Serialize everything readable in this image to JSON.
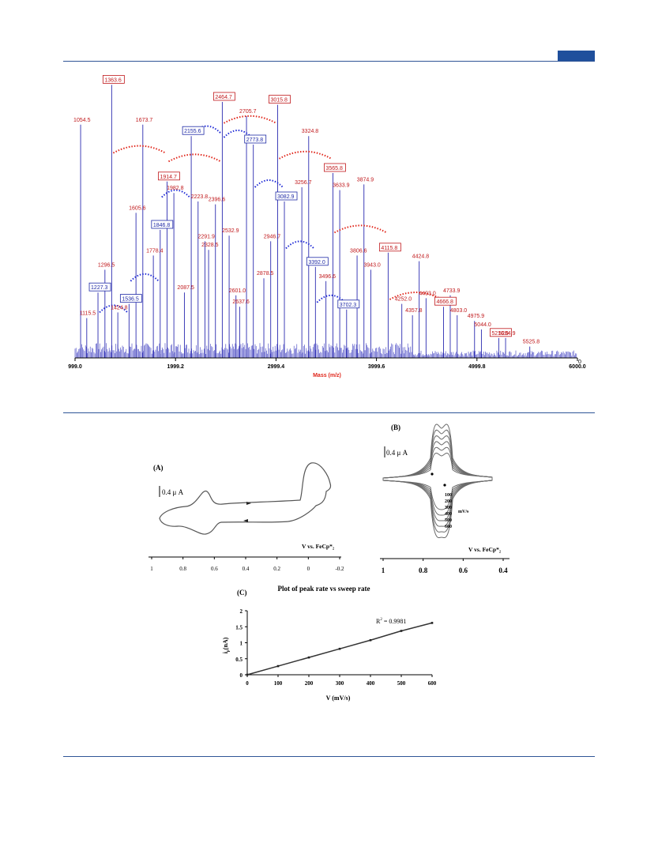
{
  "colors": {
    "rule": "#2f5597",
    "spectrum": "#2b2bb0",
    "red_label": "#c0181b",
    "blue_label": "#1f2aa6",
    "axis_title": "#e0261b"
  },
  "chart_data": [
    {
      "type": "spectrum",
      "xlabel": "Mass (m/z)",
      "xlim": [
        999.0,
        6000.0
      ],
      "x_ticks": [
        "999.0",
        "1999.2",
        "2999.4",
        "3999.6",
        "4999.8",
        "6000.0"
      ],
      "y_tick": "0",
      "ylim": [
        0,
        100
      ],
      "peaks": [
        {
          "mass": 1054.5,
          "label": "1054.5",
          "intensity": 82,
          "style": "plain"
        },
        {
          "mass": 1115.5,
          "label": "1115.5",
          "intensity": 14,
          "style": "plain"
        },
        {
          "mass": 1227.3,
          "label": "1227.3",
          "intensity": 23,
          "style": "blue-box"
        },
        {
          "mass": 1296.5,
          "label": "1296.5",
          "intensity": 31,
          "style": "plain"
        },
        {
          "mass": 1363.6,
          "label": "1363.6",
          "intensity": 96,
          "style": "red-box"
        },
        {
          "mass": 1424.8,
          "label": "1424.8",
          "intensity": 16,
          "style": "plain"
        },
        {
          "mass": 1536.5,
          "label": "1536.5",
          "intensity": 19,
          "style": "blue-box"
        },
        {
          "mass": 1605.6,
          "label": "1605.6",
          "intensity": 51,
          "style": "plain"
        },
        {
          "mass": 1673.7,
          "label": "1673.7",
          "intensity": 82,
          "style": "plain"
        },
        {
          "mass": 1778.4,
          "label": "1778.4",
          "intensity": 36,
          "style": "plain"
        },
        {
          "mass": 1846.8,
          "label": "1846.8",
          "intensity": 45,
          "style": "blue-box"
        },
        {
          "mass": 1914.7,
          "label": "1914.7",
          "intensity": 62,
          "style": "red-box"
        },
        {
          "mass": 1982.8,
          "label": "1982.8",
          "intensity": 58,
          "style": "plain"
        },
        {
          "mass": 2087.5,
          "label": "2087.5",
          "intensity": 23,
          "style": "plain"
        },
        {
          "mass": 2155.6,
          "label": "2155.6",
          "intensity": 78,
          "style": "blue-box"
        },
        {
          "mass": 2223.8,
          "label": "2223.8",
          "intensity": 55,
          "style": "plain"
        },
        {
          "mass": 2291.9,
          "label": "2291.9",
          "intensity": 41,
          "style": "plain"
        },
        {
          "mass": 2328.5,
          "label": "2328.5",
          "intensity": 38,
          "style": "plain"
        },
        {
          "mass": 2396.6,
          "label": "2396.6",
          "intensity": 54,
          "style": "plain"
        },
        {
          "mass": 2464.7,
          "label": "2464.7",
          "intensity": 90,
          "style": "red-box"
        },
        {
          "mass": 2532.9,
          "label": "2532.9",
          "intensity": 43,
          "style": "plain"
        },
        {
          "mass": 2601.0,
          "label": "2601.0",
          "intensity": 22,
          "style": "plain"
        },
        {
          "mass": 2637.6,
          "label": "2637.6",
          "intensity": 18,
          "style": "plain"
        },
        {
          "mass": 2705.7,
          "label": "2705.7",
          "intensity": 85,
          "style": "plain"
        },
        {
          "mass": 2773.8,
          "label": "2773.8",
          "intensity": 75,
          "style": "blue-box"
        },
        {
          "mass": 2878.5,
          "label": "2878.5",
          "intensity": 28,
          "style": "plain"
        },
        {
          "mass": 2946.7,
          "label": "2946.7",
          "intensity": 41,
          "style": "plain"
        },
        {
          "mass": 3015.8,
          "label": "3015.8",
          "intensity": 89,
          "style": "red-box"
        },
        {
          "mass": 3082.9,
          "label": "3082.9",
          "intensity": 55,
          "style": "blue-box"
        },
        {
          "mass": 3256.7,
          "label": "3256.7",
          "intensity": 60,
          "style": "plain"
        },
        {
          "mass": 3324.8,
          "label": "3324.8",
          "intensity": 78,
          "style": "plain"
        },
        {
          "mass": 3392.0,
          "label": "3392.0",
          "intensity": 32,
          "style": "blue-box"
        },
        {
          "mass": 3496.6,
          "label": "3496.6",
          "intensity": 27,
          "style": "plain"
        },
        {
          "mass": 3565.8,
          "label": "3565.8",
          "intensity": 65,
          "style": "red-box"
        },
        {
          "mass": 3633.9,
          "label": "3633.9",
          "intensity": 59,
          "style": "plain"
        },
        {
          "mass": 3702.3,
          "label": "3702.3",
          "intensity": 17,
          "style": "blue-box"
        },
        {
          "mass": 3806.6,
          "label": "3806.6",
          "intensity": 36,
          "style": "plain"
        },
        {
          "mass": 3874.9,
          "label": "3874.9",
          "intensity": 61,
          "style": "plain"
        },
        {
          "mass": 3943.0,
          "label": "3943.0",
          "intensity": 31,
          "style": "plain"
        },
        {
          "mass": 4115.8,
          "label": "4115.8",
          "intensity": 37,
          "style": "red-box"
        },
        {
          "mass": 4252.0,
          "label": "4252.0",
          "intensity": 19,
          "style": "plain"
        },
        {
          "mass": 4357.8,
          "label": "4357.8",
          "intensity": 15,
          "style": "plain"
        },
        {
          "mass": 4424.8,
          "label": "4424.8",
          "intensity": 34,
          "style": "plain"
        },
        {
          "mass": 4493.0,
          "label": "4493.0",
          "intensity": 21,
          "style": "plain"
        },
        {
          "mass": 4666.8,
          "label": "4666.8",
          "intensity": 18,
          "style": "red-box"
        },
        {
          "mass": 4733.9,
          "label": "4733.9",
          "intensity": 22,
          "style": "plain"
        },
        {
          "mass": 4803.0,
          "label": "4803.0",
          "intensity": 15,
          "style": "plain"
        },
        {
          "mass": 4975.9,
          "label": "4975.9",
          "intensity": 13,
          "style": "plain"
        },
        {
          "mass": 5044.0,
          "label": "5044.0",
          "intensity": 10,
          "style": "plain"
        },
        {
          "mass": 5216.9,
          "label": "5216.9",
          "intensity": 7,
          "style": "red-box"
        },
        {
          "mass": 5284.9,
          "label": "5284.9",
          "intensity": 7,
          "style": "plain"
        },
        {
          "mass": 5525.8,
          "label": "5525.8",
          "intensity": 4,
          "style": "plain"
        }
      ],
      "series_arcs": [
        {
          "color": "red",
          "from": 1363.6,
          "to": 1914.7
        },
        {
          "color": "red",
          "from": 1914.7,
          "to": 2464.7
        },
        {
          "color": "red",
          "from": 2464.7,
          "to": 3015.8
        },
        {
          "color": "red",
          "from": 3015.8,
          "to": 3565.8
        },
        {
          "color": "red",
          "from": 3565.8,
          "to": 4115.8
        },
        {
          "color": "red",
          "from": 4115.8,
          "to": 4666.8
        },
        {
          "color": "blue",
          "from": 1227.3,
          "to": 1536.5
        },
        {
          "color": "blue",
          "from": 1536.5,
          "to": 1846.8
        },
        {
          "color": "blue",
          "from": 1846.8,
          "to": 2155.6
        },
        {
          "color": "blue",
          "from": 2155.6,
          "to": 2464.7
        },
        {
          "color": "blue",
          "from": 2464.7,
          "to": 2773.8
        },
        {
          "color": "blue",
          "from": 2773.8,
          "to": 3082.9
        },
        {
          "color": "blue",
          "from": 3082.9,
          "to": 3392.0
        },
        {
          "color": "blue",
          "from": 3392.0,
          "to": 3702.3
        }
      ]
    },
    {
      "type": "line",
      "panel": "(A)",
      "scale_bar": "0.4 μ A",
      "xlabel": "V vs. FeCp*₂",
      "x_ticks": [
        "1",
        "0.8",
        "0.6",
        "0.4",
        "0.2",
        "0",
        "-0.2"
      ]
    },
    {
      "type": "line",
      "panel": "(B)",
      "scale_bar": "0.4 μ A",
      "xlabel": "V vs. FeCp*₂",
      "x_ticks": [
        "1",
        "0.8",
        "0.6",
        "0.4"
      ],
      "legend_title": "mV/s",
      "sweep_rates": [
        "100",
        "200",
        "300",
        "400",
        "500",
        "600"
      ]
    },
    {
      "type": "scatter",
      "panel": "(C)",
      "title": "Plot of peak rate vs sweep rate",
      "xlabel": "V (mV/s)",
      "ylabel": "i",
      "ylabel_sub": "p",
      "ylabel_unit": "(nA)",
      "xlim": [
        0,
        600
      ],
      "ylim": [
        0,
        2
      ],
      "x_ticks": [
        "0",
        "100",
        "200",
        "300",
        "400",
        "500",
        "600"
      ],
      "y_ticks": [
        "0",
        "0.5",
        "1",
        "1.5",
        "2"
      ],
      "x": [
        0,
        100,
        200,
        300,
        400,
        500,
        600
      ],
      "y": [
        0.0,
        0.27,
        0.54,
        0.81,
        1.08,
        1.37,
        1.62
      ],
      "annotation_label": "R",
      "annotation_sup": "2",
      "annotation_value": " = 0.9981"
    }
  ]
}
